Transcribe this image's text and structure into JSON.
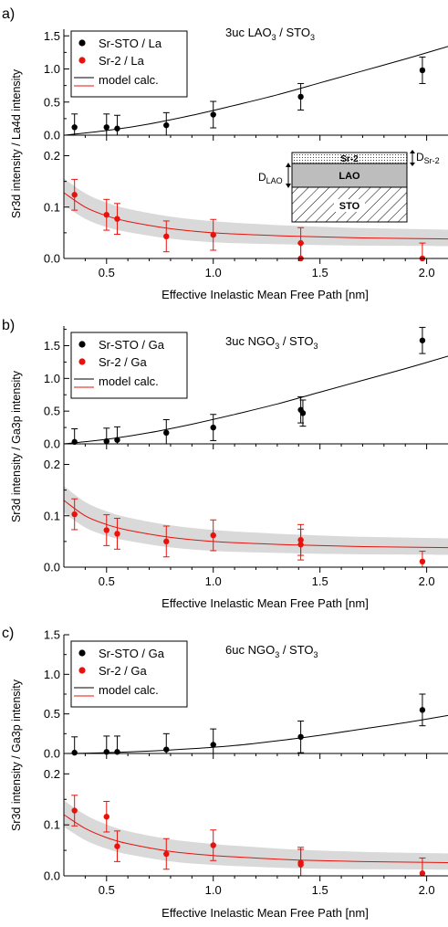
{
  "panels": [
    {
      "label": "a)",
      "annotation_main": "3uc LAO",
      "annotation_sub1": "3",
      "annotation_mid": " / STO",
      "annotation_sub2": "3",
      "ylabel_shared": "Sr3d intensity / La4d intensity",
      "xlabel": "Effective Inelastic Mean Free Path [nm]",
      "legend": [
        "Sr-STO / La",
        "Sr-2 / La",
        "model calc."
      ],
      "inset": {
        "top": "Sr-2",
        "mid": "LAO",
        "bottom": "STO",
        "d_sr2": "D",
        "d_sr2_sub": "Sr-2",
        "d_lao": "D",
        "d_lao_sub": "LAO"
      }
    },
    {
      "label": "b)",
      "annotation_main": "3uc NGO",
      "annotation_sub1": "3",
      "annotation_mid": " / STO",
      "annotation_sub2": "3",
      "ylabel_shared": "Sr3d intensity / Ga3p intensity",
      "xlabel": "Effective Inelastic Mean Free Path [nm]",
      "legend": [
        "Sr-STO / Ga",
        "Sr-2 / Ga",
        "model calc."
      ]
    },
    {
      "label": "c)",
      "annotation_main": "6uc NGO",
      "annotation_sub1": "3",
      "annotation_mid": " / STO",
      "annotation_sub2": "3",
      "ylabel_shared": "Sr3d intensity / Ga3p intensity",
      "xlabel": "Effective Inelastic Mean Free Path [nm]",
      "legend": [
        "Sr-STO / Ga",
        "Sr-2 / Ga",
        "model calc."
      ]
    }
  ],
  "colors": {
    "black": "#000000",
    "red": "#e8120c",
    "band": "#d9d9d9"
  },
  "chart_data": [
    {
      "type": "scatter",
      "panel": "a) top",
      "xlim": [
        0.3,
        2.1
      ],
      "ylim": [
        0,
        1.6
      ],
      "yticks": [
        0.0,
        0.5,
        1.0,
        1.5
      ],
      "series": [
        {
          "name": "Sr-STO / La",
          "x": [
            0.35,
            0.5,
            0.55,
            0.78,
            1.0,
            1.41,
            1.98
          ],
          "y": [
            0.12,
            0.12,
            0.1,
            0.15,
            0.31,
            0.58,
            0.98
          ],
          "err": [
            0.2,
            0.2,
            0.2,
            0.19,
            0.2,
            0.2,
            0.2
          ]
        },
        {
          "name": "model calc.",
          "kind": "line",
          "x": [
            0.3,
            0.5,
            0.7,
            0.9,
            1.1,
            1.3,
            1.5,
            1.7,
            1.9,
            2.1
          ],
          "y": [
            0.0,
            0.07,
            0.17,
            0.3,
            0.45,
            0.61,
            0.79,
            0.97,
            1.15,
            1.34
          ]
        }
      ]
    },
    {
      "type": "scatter",
      "panel": "a) bottom",
      "xlim": [
        0.3,
        2.1
      ],
      "ylim": [
        0,
        0.24
      ],
      "yticks": [
        0.0,
        0.1,
        0.2
      ],
      "xticks": [
        0.5,
        1.0,
        1.5,
        2.0
      ],
      "series": [
        {
          "name": "Sr-2 / La",
          "x": [
            0.35,
            0.5,
            0.55,
            0.78,
            1.0,
            1.41,
            1.41,
            1.98
          ],
          "y": [
            0.124,
            0.085,
            0.077,
            0.043,
            0.046,
            0.03,
            0.0,
            0.0
          ],
          "err": [
            0.03,
            0.03,
            0.03,
            0.03,
            0.03,
            0.03,
            0.03,
            0.03
          ]
        },
        {
          "name": "model calc.",
          "kind": "line",
          "x": [
            0.3,
            0.4,
            0.5,
            0.6,
            0.8,
            1.0,
            1.2,
            1.4,
            1.7,
            2.1
          ],
          "y": [
            0.128,
            0.1,
            0.083,
            0.072,
            0.058,
            0.05,
            0.046,
            0.043,
            0.04,
            0.038
          ],
          "band": 0.02
        }
      ]
    },
    {
      "type": "scatter",
      "panel": "b) top",
      "xlim": [
        0.3,
        2.1
      ],
      "ylim": [
        0,
        1.8
      ],
      "yticks": [
        0.0,
        0.5,
        1.0,
        1.5
      ],
      "series": [
        {
          "name": "Sr-STO / Ga",
          "x": [
            0.35,
            0.5,
            0.55,
            0.78,
            1.0,
            1.41,
            1.42,
            1.98
          ],
          "y": [
            0.03,
            0.04,
            0.06,
            0.17,
            0.25,
            0.52,
            0.47,
            1.58
          ],
          "err": [
            0.2,
            0.2,
            0.2,
            0.2,
            0.2,
            0.2,
            0.2,
            0.2
          ]
        },
        {
          "name": "model calc.",
          "kind": "line",
          "x": [
            0.3,
            0.5,
            0.7,
            0.9,
            1.1,
            1.3,
            1.5,
            1.7,
            1.9,
            2.1
          ],
          "y": [
            0.0,
            0.07,
            0.17,
            0.3,
            0.45,
            0.61,
            0.79,
            0.97,
            1.15,
            1.34
          ]
        }
      ]
    },
    {
      "type": "scatter",
      "panel": "b) bottom",
      "xlim": [
        0.3,
        2.1
      ],
      "ylim": [
        0,
        0.24
      ],
      "yticks": [
        0.0,
        0.1,
        0.2
      ],
      "xticks": [
        0.5,
        1.0,
        1.5,
        2.0
      ],
      "series": [
        {
          "name": "Sr-2 / Ga",
          "x": [
            0.35,
            0.5,
            0.55,
            0.78,
            1.0,
            1.41,
            1.41,
            1.98
          ],
          "y": [
            0.103,
            0.072,
            0.065,
            0.05,
            0.062,
            0.044,
            0.053,
            0.011
          ],
          "err": [
            0.03,
            0.03,
            0.03,
            0.03,
            0.03,
            0.03,
            0.03,
            0.02
          ]
        },
        {
          "name": "model calc.",
          "kind": "line",
          "x": [
            0.3,
            0.4,
            0.5,
            0.6,
            0.8,
            1.0,
            1.2,
            1.4,
            1.7,
            2.1
          ],
          "y": [
            0.13,
            0.1,
            0.083,
            0.072,
            0.058,
            0.05,
            0.046,
            0.043,
            0.04,
            0.038
          ],
          "band": 0.02
        }
      ]
    },
    {
      "type": "scatter",
      "panel": "c) top",
      "xlim": [
        0.3,
        2.1
      ],
      "ylim": [
        0,
        1.5
      ],
      "yticks": [
        0.0,
        0.5,
        1.0,
        1.5
      ],
      "series": [
        {
          "name": "Sr-STO / Ga",
          "x": [
            0.35,
            0.5,
            0.55,
            0.78,
            1.0,
            1.41,
            1.98
          ],
          "y": [
            0.01,
            0.02,
            0.02,
            0.05,
            0.11,
            0.21,
            0.55
          ],
          "err": [
            0.2,
            0.2,
            0.2,
            0.2,
            0.2,
            0.2,
            0.2
          ]
        },
        {
          "name": "model calc.",
          "kind": "line",
          "x": [
            0.3,
            0.5,
            0.7,
            0.9,
            1.1,
            1.3,
            1.5,
            1.7,
            1.9,
            2.1
          ],
          "y": [
            0.0,
            0.01,
            0.03,
            0.06,
            0.1,
            0.16,
            0.23,
            0.31,
            0.39,
            0.48
          ]
        }
      ]
    },
    {
      "type": "scatter",
      "panel": "c) bottom",
      "xlim": [
        0.3,
        2.1
      ],
      "ylim": [
        0,
        0.24
      ],
      "yticks": [
        0.0,
        0.1,
        0.2
      ],
      "xticks": [
        0.5,
        1.0,
        1.5,
        2.0
      ],
      "series": [
        {
          "name": "Sr-2 / Ga",
          "x": [
            0.35,
            0.5,
            0.55,
            0.78,
            1.0,
            1.41,
            1.41,
            1.98
          ],
          "y": [
            0.128,
            0.116,
            0.058,
            0.043,
            0.06,
            0.026,
            0.022,
            0.005
          ],
          "err": [
            0.03,
            0.03,
            0.03,
            0.03,
            0.03,
            0.03,
            0.03,
            0.03
          ]
        },
        {
          "name": "model calc.",
          "kind": "line",
          "x": [
            0.3,
            0.4,
            0.5,
            0.6,
            0.8,
            1.0,
            1.2,
            1.4,
            1.7,
            2.1
          ],
          "y": [
            0.12,
            0.093,
            0.075,
            0.063,
            0.048,
            0.04,
            0.035,
            0.031,
            0.028,
            0.026
          ],
          "band": 0.02
        }
      ]
    }
  ]
}
